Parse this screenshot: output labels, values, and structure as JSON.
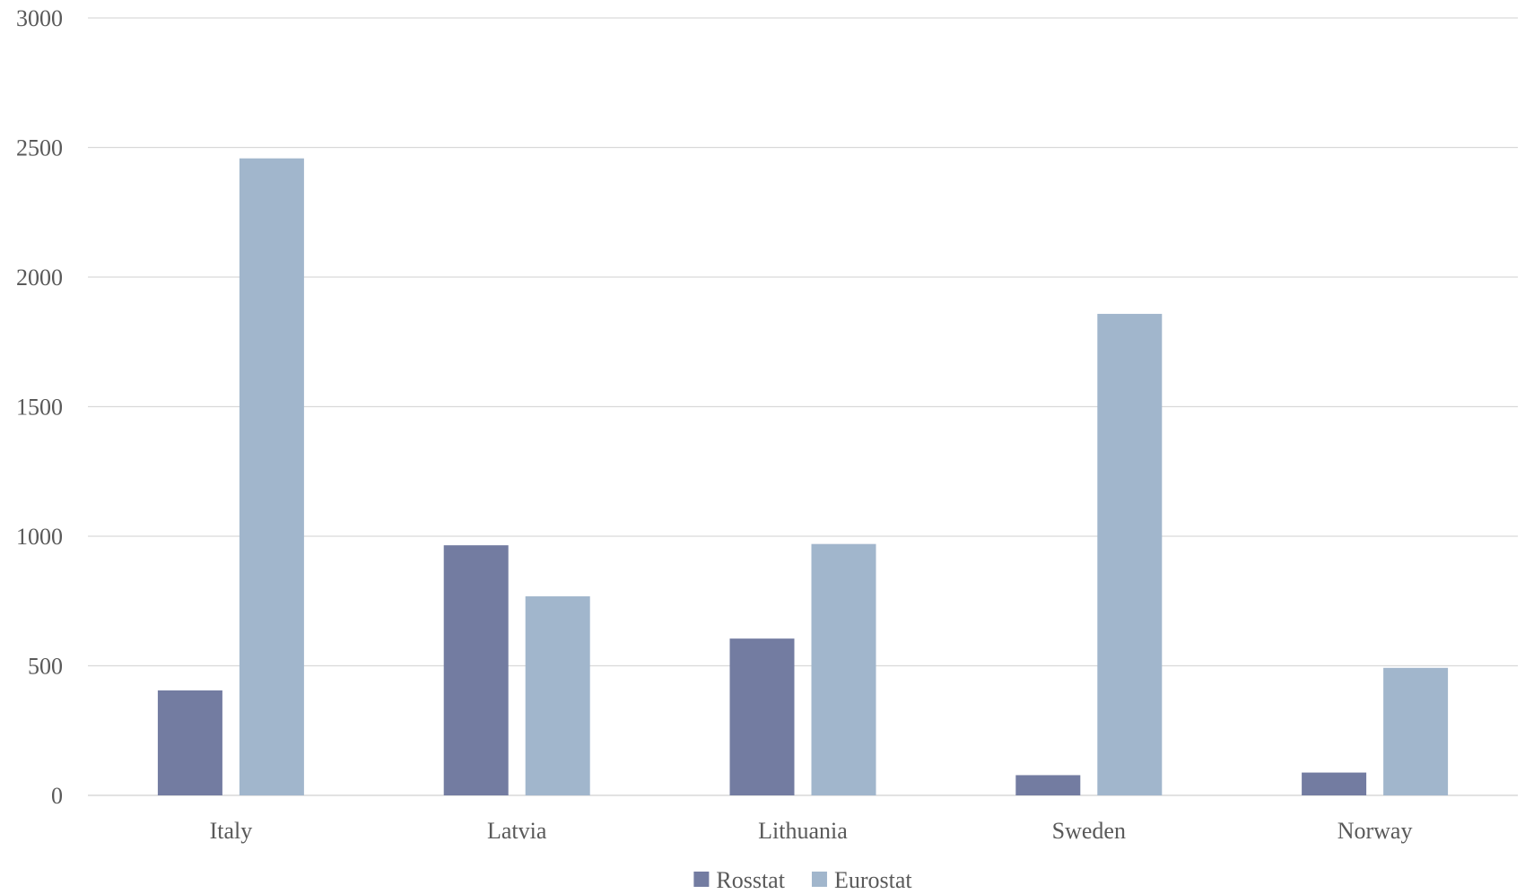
{
  "chart_data": {
    "type": "bar",
    "categories": [
      "Italy",
      "Latvia",
      "Lithuania",
      "Sweden",
      "Norway"
    ],
    "series": [
      {
        "name": "Rosstat",
        "color": "#737ca1",
        "values": [
          405,
          965,
          605,
          78,
          88
        ]
      },
      {
        "name": "Eurostat",
        "color": "#a1b6cc",
        "values": [
          2458,
          768,
          970,
          1858,
          492
        ]
      }
    ],
    "y_ticks": [
      "0",
      "500",
      "1000",
      "1500",
      "2000",
      "2500",
      "3000"
    ],
    "ylim": [
      0,
      3000
    ],
    "ystep": 500,
    "grid": true,
    "grid_color": "#d9d9d9",
    "legend_position": "bottom-center",
    "title": "",
    "xlabel": "",
    "ylabel": ""
  }
}
